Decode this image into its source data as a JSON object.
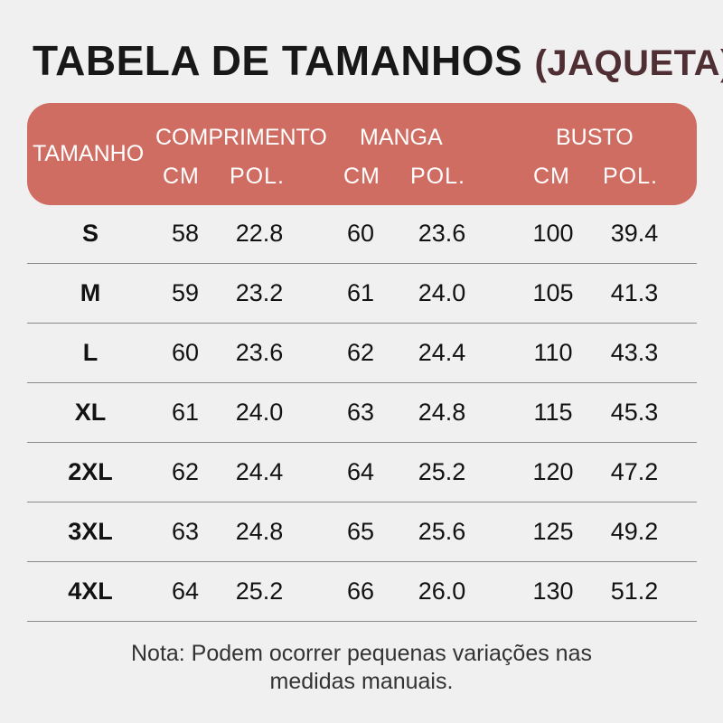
{
  "title": {
    "main": "TABELA DE TAMANHOS",
    "sub": "(JAQUETA)"
  },
  "header": {
    "size_label": "TAMANHO",
    "groups": [
      "COMPRIMENTO",
      "MANGA",
      "BUSTO"
    ],
    "units": [
      "CM",
      "POL.",
      "CM",
      "POL.",
      "CM",
      "POL."
    ]
  },
  "rows": [
    {
      "size": "S",
      "values": [
        "58",
        "22.8",
        "60",
        "23.6",
        "100",
        "39.4"
      ]
    },
    {
      "size": "M",
      "values": [
        "59",
        "23.2",
        "61",
        "24.0",
        "105",
        "41.3"
      ]
    },
    {
      "size": "L",
      "values": [
        "60",
        "23.6",
        "62",
        "24.4",
        "110",
        "43.3"
      ]
    },
    {
      "size": "XL",
      "values": [
        "61",
        "24.0",
        "63",
        "24.8",
        "115",
        "45.3"
      ]
    },
    {
      "size": "2XL",
      "values": [
        "62",
        "24.4",
        "64",
        "25.2",
        "120",
        "47.2"
      ]
    },
    {
      "size": "3XL",
      "values": [
        "63",
        "24.8",
        "65",
        "25.6",
        "125",
        "49.2"
      ]
    },
    {
      "size": "4XL",
      "values": [
        "64",
        "25.2",
        "66",
        "26.0",
        "130",
        "51.2"
      ]
    }
  ],
  "note": {
    "line1": "Nota: Podem ocorrer pequenas variações nas",
    "line2": "medidas manuais."
  },
  "colors": {
    "header_bg": "#d06d62",
    "subtitle": "#4f2f34",
    "background": "#f1f0f1"
  }
}
